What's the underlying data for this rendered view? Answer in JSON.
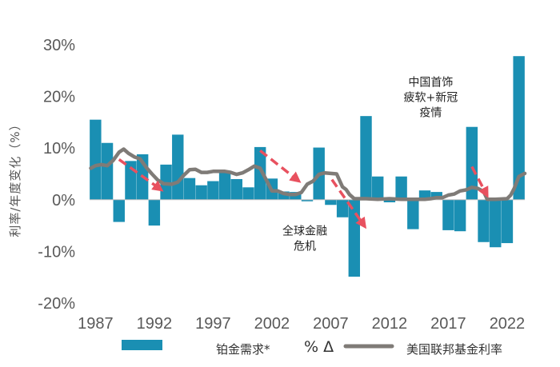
{
  "chart_data": {
    "type": "bar+line",
    "title": "",
    "ylabel": "利率/年度变化（%）",
    "xlabel": "",
    "ylim": [
      -20,
      30
    ],
    "y_ticks": [
      30,
      20,
      10,
      0,
      -10,
      -20
    ],
    "y_tick_labels": [
      "30%",
      "20%",
      "10%",
      "0%",
      "-10%",
      "-20%"
    ],
    "x_ticks": [
      1987,
      1992,
      1997,
      2002,
      2007,
      2012,
      2017,
      2022
    ],
    "x_tick_labels": [
      "1987",
      "1992",
      "1997",
      "2002",
      "2007",
      "2012",
      "2017",
      "2022"
    ],
    "xlim": [
      1986.5,
      2023.5
    ],
    "grid": false,
    "bar_series": {
      "name": "铂金需求*",
      "color": "#1a8fb3",
      "years": [
        1987,
        1988,
        1989,
        1990,
        1991,
        1992,
        1993,
        1994,
        1995,
        1996,
        1997,
        1998,
        1999,
        2000,
        2001,
        2002,
        2003,
        2004,
        2005,
        2006,
        2007,
        2008,
        2009,
        2010,
        2011,
        2012,
        2013,
        2014,
        2015,
        2016,
        2017,
        2018,
        2019,
        2020,
        2021,
        2022,
        2023
      ],
      "values": [
        15.5,
        11.0,
        -4.3,
        7.5,
        8.8,
        -5.0,
        6.8,
        12.6,
        4.2,
        2.8,
        3.6,
        5.2,
        4.0,
        2.4,
        10.2,
        4.1,
        1.6,
        1.5,
        -0.3,
        10.1,
        -1.0,
        -3.4,
        -14.9,
        16.2,
        4.5,
        -0.5,
        4.5,
        -5.7,
        1.8,
        1.5,
        -5.9,
        -6.1,
        14.1,
        -8.2,
        -9.2,
        -8.4,
        27.8
      ]
    },
    "line_series": {
      "name": "美国联邦基金利率",
      "color": "#7f7b77",
      "x": [
        1986.6,
        1987.0,
        1987.5,
        1988.0,
        1988.5,
        1989.0,
        1989.4,
        1989.8,
        1990.3,
        1990.8,
        1991.3,
        1991.8,
        1992.3,
        1992.8,
        1993.5,
        1994.0,
        1994.5,
        1995.0,
        1995.5,
        1996.0,
        1996.5,
        1997.0,
        1997.5,
        1998.0,
        1998.5,
        1999.0,
        1999.5,
        2000.0,
        2000.5,
        2001.0,
        2001.3,
        2001.6,
        2002.0,
        2002.5,
        2003.0,
        2003.5,
        2004.0,
        2004.5,
        2005.0,
        2005.5,
        2006.0,
        2006.5,
        2007.0,
        2007.5,
        2008.0,
        2008.3,
        2008.6,
        2009.0,
        2010.0,
        2011.0,
        2012.0,
        2013.0,
        2014.0,
        2015.0,
        2015.5,
        2016.0,
        2016.5,
        2017.0,
        2017.5,
        2018.0,
        2018.5,
        2019.0,
        2019.5,
        2020.0,
        2020.3,
        2021.0,
        2022.0,
        2022.3,
        2022.6,
        2023.0,
        2023.5
      ],
      "values": [
        6.1,
        6.6,
        6.8,
        6.6,
        7.6,
        9.2,
        9.8,
        9.0,
        8.3,
        7.9,
        6.3,
        5.0,
        3.8,
        3.1,
        3.0,
        3.4,
        4.7,
        5.8,
        5.9,
        5.3,
        5.3,
        5.5,
        5.5,
        5.5,
        5.3,
        4.9,
        5.2,
        5.8,
        6.5,
        6.1,
        4.8,
        3.5,
        1.7,
        1.7,
        1.2,
        1.0,
        1.0,
        1.4,
        3.0,
        3.6,
        4.9,
        5.2,
        5.1,
        5.0,
        2.5,
        2.0,
        1.0,
        0.2,
        0.2,
        0.1,
        0.2,
        0.1,
        0.1,
        0.1,
        0.2,
        0.4,
        0.4,
        0.9,
        1.1,
        1.7,
        1.9,
        2.4,
        2.2,
        1.6,
        0.1,
        0.1,
        0.2,
        0.9,
        2.2,
        4.5,
        5.1
      ]
    },
    "arrows": [
      {
        "from": [
          1989.0,
          7.8
        ],
        "to": [
          1992.6,
          1.9
        ]
      },
      {
        "from": [
          2001.0,
          9.5
        ],
        "to": [
          2004.3,
          3.6
        ]
      },
      {
        "from": [
          2007.1,
          3.9
        ],
        "to": [
          2009.9,
          -5.2
        ]
      },
      {
        "from": [
          2019.0,
          6.4
        ],
        "to": [
          2020.3,
          0.8
        ]
      }
    ],
    "annotations": [
      {
        "lines": [
          "中国首饰",
          "疲软+新冠",
          "疫情"
        ],
        "at": [
          2015.5,
          22.0
        ]
      },
      {
        "lines": [
          "全球金融",
          "危机"
        ],
        "at": [
          2004.8,
          -6.8
        ]
      }
    ],
    "legend": {
      "placement": "bottom",
      "bar_label": "铂金需求*",
      "symbol": "% Δ",
      "line_label": "美国联邦基金利率"
    }
  }
}
